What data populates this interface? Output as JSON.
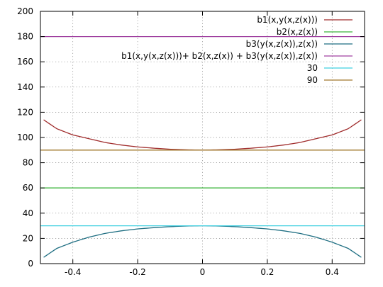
{
  "chart_data": {
    "type": "line",
    "title": "",
    "xlabel": "",
    "ylabel": "",
    "xlim": [
      -0.5,
      0.5
    ],
    "ylim": [
      0,
      200
    ],
    "x_ticks": [
      -0.4,
      -0.2,
      0,
      0.2,
      0.4
    ],
    "x_tick_labels": [
      "-0.4",
      "-0.2",
      "0",
      "0.2",
      "0.4"
    ],
    "y_ticks": [
      0,
      20,
      40,
      60,
      80,
      100,
      120,
      140,
      160,
      180,
      200
    ],
    "y_tick_labels": [
      "0",
      "20",
      "40",
      "60",
      "80",
      "100",
      "120",
      "140",
      "160",
      "180",
      "200"
    ],
    "grid": true,
    "legend_position": "top-right",
    "x": [
      -0.49,
      -0.45,
      -0.4,
      -0.35,
      -0.3,
      -0.25,
      -0.2,
      -0.15,
      -0.1,
      -0.05,
      0,
      0.05,
      0.1,
      0.15,
      0.2,
      0.25,
      0.3,
      0.35,
      0.4,
      0.45,
      0.49
    ],
    "series": [
      {
        "name": "b1(x,y(x,z(x)))",
        "color": "#a02c2c",
        "values": [
          114,
          107,
          102,
          99,
          96,
          94,
          92.5,
          91.5,
          90.7,
          90.2,
          90,
          90.2,
          90.7,
          91.5,
          92.5,
          94,
          96,
          99,
          102,
          107,
          114
        ]
      },
      {
        "name": "b2(x,z(x))",
        "color": "#3cb43c",
        "values": [
          60,
          60,
          60,
          60,
          60,
          60,
          60,
          60,
          60,
          60,
          60,
          60,
          60,
          60,
          60,
          60,
          60,
          60,
          60,
          60,
          60
        ]
      },
      {
        "name": "b3(y(x,z(x)),z(x))",
        "color": "#1e6e82",
        "values": [
          5,
          12,
          17,
          21,
          24,
          26,
          27.5,
          28.5,
          29.3,
          29.8,
          30,
          29.8,
          29.3,
          28.5,
          27.5,
          26,
          24,
          21,
          17,
          12,
          5
        ]
      },
      {
        "name": "b1(x,y(x,z(x)))+ b2(x,z(x)) + b3(y(x,z(x)),z(x))",
        "color": "#a040a0",
        "values": [
          180,
          180,
          180,
          180,
          180,
          180,
          180,
          180,
          180,
          180,
          180,
          180,
          180,
          180,
          180,
          180,
          180,
          180,
          180,
          180,
          180
        ]
      },
      {
        "name": "30",
        "color": "#40d0e0",
        "values": [
          30,
          30,
          30,
          30,
          30,
          30,
          30,
          30,
          30,
          30,
          30,
          30,
          30,
          30,
          30,
          30,
          30,
          30,
          30,
          30,
          30
        ]
      },
      {
        "name": "90",
        "color": "#a0782c",
        "values": [
          90,
          90,
          90,
          90,
          90,
          90,
          90,
          90,
          90,
          90,
          90,
          90,
          90,
          90,
          90,
          90,
          90,
          90,
          90,
          90,
          90
        ]
      }
    ]
  }
}
